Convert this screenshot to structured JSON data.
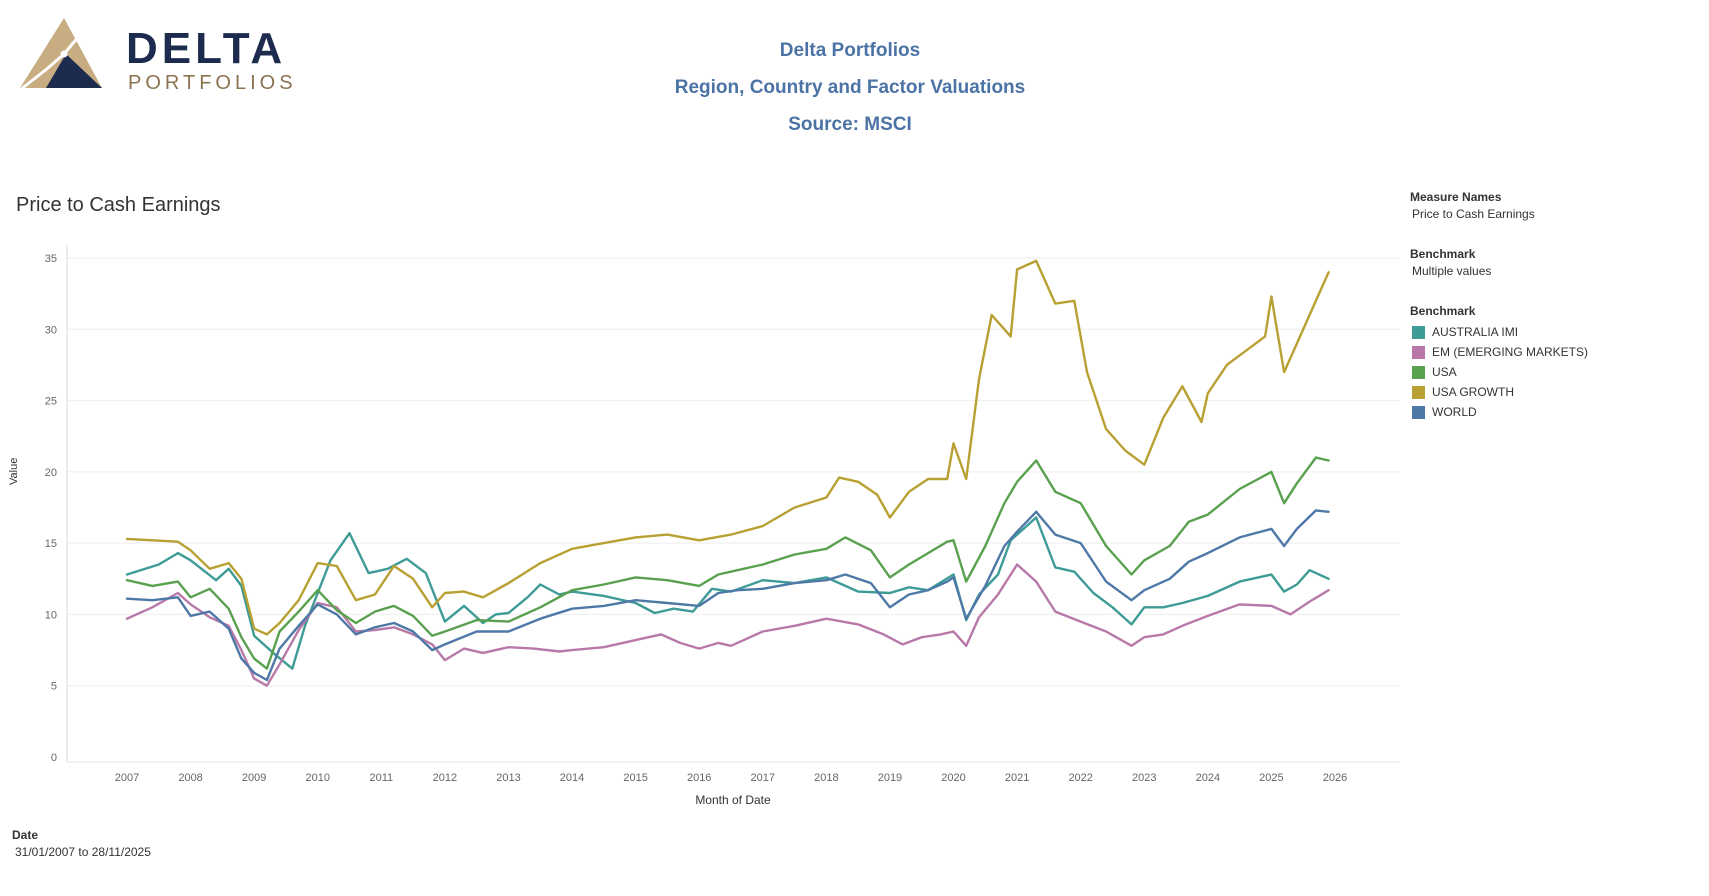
{
  "logo": {
    "name": "DELTA",
    "sub": "PORTFOLIOS",
    "colors": {
      "navy": "#1d2b4f",
      "tan": "#c9ad82"
    }
  },
  "header": {
    "line1": "Delta Portfolios",
    "line2": "Region, Country and Factor Valuations",
    "line3": "Source: MSCI"
  },
  "legend": {
    "measure_names_label": "Measure Names",
    "measure_names_value": "Price to Cash Earnings",
    "benchmark_filter_label": "Benchmark",
    "benchmark_filter_value": "Multiple values",
    "benchmark_color_label": "Benchmark"
  },
  "date_filter": {
    "label": "Date",
    "value": "31/01/2007 to 28/11/2025"
  },
  "chart_data": {
    "type": "line",
    "title": "Price to Cash Earnings",
    "xlabel": "Month of Date",
    "ylabel": "Value",
    "ylim": [
      0,
      35
    ],
    "xlim": [
      2007,
      2026
    ],
    "yticks": [
      0,
      5,
      10,
      15,
      20,
      25,
      30,
      35
    ],
    "xticks": [
      2007,
      2008,
      2009,
      2010,
      2011,
      2012,
      2013,
      2014,
      2015,
      2016,
      2017,
      2018,
      2019,
      2020,
      2021,
      2022,
      2023,
      2024,
      2025,
      2026
    ],
    "grid": "horizontal",
    "legend_position": "right",
    "series": [
      {
        "name": "AUSTRALIA IMI",
        "color": "#3e9b96",
        "x": [
          2007.0,
          2007.5,
          2007.8,
          2008.0,
          2008.4,
          2008.6,
          2008.8,
          2009.0,
          2009.3,
          2009.6,
          2009.8,
          2010.0,
          2010.2,
          2010.5,
          2010.8,
          2011.1,
          2011.4,
          2011.7,
          2012.0,
          2012.3,
          2012.6,
          2012.8,
          2013.0,
          2013.3,
          2013.5,
          2013.8,
          2014.0,
          2014.5,
          2015.0,
          2015.3,
          2015.6,
          2015.9,
          2016.2,
          2016.5,
          2017.0,
          2017.5,
          2018.0,
          2018.5,
          2019.0,
          2019.3,
          2019.6,
          2020.0,
          2020.2,
          2020.4,
          2020.7,
          2020.9,
          2021.1,
          2021.3,
          2021.6,
          2021.9,
          2022.2,
          2022.5,
          2022.8,
          2023.0,
          2023.3,
          2023.6,
          2024.0,
          2024.5,
          2025.0,
          2025.2,
          2025.4,
          2025.6,
          2025.9
        ],
        "values": [
          12.8,
          13.5,
          14.3,
          13.8,
          12.4,
          13.2,
          12.0,
          8.5,
          7.3,
          6.2,
          9.2,
          11.5,
          13.8,
          15.7,
          12.9,
          13.2,
          13.9,
          12.9,
          9.5,
          10.6,
          9.4,
          10.0,
          10.1,
          11.2,
          12.1,
          11.4,
          11.6,
          11.3,
          10.8,
          10.1,
          10.4,
          10.2,
          11.8,
          11.6,
          12.4,
          12.2,
          12.6,
          11.6,
          11.5,
          11.9,
          11.7,
          12.8,
          9.6,
          11.4,
          12.8,
          15.2,
          16.0,
          16.8,
          13.3,
          13.0,
          11.5,
          10.5,
          9.3,
          10.5,
          10.5,
          10.8,
          11.3,
          12.3,
          12.8,
          11.6,
          12.1,
          13.1,
          12.5
        ]
      },
      {
        "name": "EM (EMERGING MARKETS)",
        "color": "#b879a8",
        "x": [
          2007.0,
          2007.4,
          2007.8,
          2008.0,
          2008.3,
          2008.6,
          2008.8,
          2009.0,
          2009.2,
          2009.4,
          2009.7,
          2010.0,
          2010.3,
          2010.6,
          2010.9,
          2011.2,
          2011.5,
          2011.8,
          2012.0,
          2012.3,
          2012.6,
          2013.0,
          2013.4,
          2013.8,
          2014.0,
          2014.5,
          2015.0,
          2015.4,
          2015.7,
          2016.0,
          2016.3,
          2016.5,
          2017.0,
          2017.5,
          2018.0,
          2018.5,
          2018.9,
          2019.2,
          2019.5,
          2019.8,
          2020.0,
          2020.2,
          2020.4,
          2020.7,
          2021.0,
          2021.3,
          2021.6,
          2022.0,
          2022.4,
          2022.8,
          2023.0,
          2023.3,
          2023.6,
          2024.0,
          2024.5,
          2025.0,
          2025.3,
          2025.6,
          2025.9
        ],
        "values": [
          9.7,
          10.5,
          11.5,
          10.7,
          9.8,
          9.2,
          7.5,
          5.5,
          5.0,
          6.5,
          8.9,
          10.8,
          10.5,
          8.8,
          8.9,
          9.1,
          8.6,
          7.9,
          6.8,
          7.6,
          7.3,
          7.7,
          7.6,
          7.4,
          7.5,
          7.7,
          8.2,
          8.6,
          8.0,
          7.6,
          8.0,
          7.8,
          8.8,
          9.2,
          9.7,
          9.3,
          8.6,
          7.9,
          8.4,
          8.6,
          8.8,
          7.8,
          9.8,
          11.4,
          13.5,
          12.3,
          10.2,
          9.5,
          8.8,
          7.8,
          8.4,
          8.6,
          9.2,
          9.9,
          10.7,
          10.6,
          10.0,
          10.9,
          11.7
        ]
      },
      {
        "name": "USA",
        "color": "#59a14f",
        "x": [
          2007.0,
          2007.4,
          2007.8,
          2008.0,
          2008.3,
          2008.6,
          2008.8,
          2009.0,
          2009.2,
          2009.4,
          2009.7,
          2010.0,
          2010.3,
          2010.6,
          2010.9,
          2011.2,
          2011.5,
          2011.8,
          2012.0,
          2012.5,
          2013.0,
          2013.5,
          2014.0,
          2014.5,
          2015.0,
          2015.5,
          2016.0,
          2016.3,
          2016.6,
          2017.0,
          2017.5,
          2018.0,
          2018.3,
          2018.7,
          2019.0,
          2019.3,
          2019.6,
          2019.9,
          2020.0,
          2020.2,
          2020.5,
          2020.8,
          2021.0,
          2021.3,
          2021.6,
          2022.0,
          2022.4,
          2022.8,
          2023.0,
          2023.4,
          2023.7,
          2024.0,
          2024.5,
          2025.0,
          2025.2,
          2025.4,
          2025.7,
          2025.9
        ],
        "values": [
          12.4,
          12.0,
          12.3,
          11.2,
          11.8,
          10.4,
          8.4,
          6.9,
          6.2,
          8.8,
          10.2,
          11.7,
          10.3,
          9.4,
          10.2,
          10.6,
          9.9,
          8.5,
          8.8,
          9.6,
          9.5,
          10.5,
          11.7,
          12.1,
          12.6,
          12.4,
          12.0,
          12.8,
          13.1,
          13.5,
          14.2,
          14.6,
          15.4,
          14.5,
          12.6,
          13.5,
          14.3,
          15.1,
          15.2,
          12.3,
          14.8,
          17.8,
          19.3,
          20.8,
          18.6,
          17.8,
          14.8,
          12.8,
          13.8,
          14.8,
          16.5,
          17.0,
          18.8,
          20.0,
          17.8,
          19.2,
          21.0,
          20.8
        ]
      },
      {
        "name": "USA GROWTH",
        "color": "#b9a033",
        "x": [
          2007.0,
          2007.4,
          2007.8,
          2008.0,
          2008.3,
          2008.6,
          2008.8,
          2009.0,
          2009.2,
          2009.4,
          2009.7,
          2010.0,
          2010.3,
          2010.6,
          2010.9,
          2011.2,
          2011.5,
          2011.8,
          2012.0,
          2012.3,
          2012.6,
          2013.0,
          2013.5,
          2014.0,
          2014.5,
          2015.0,
          2015.5,
          2016.0,
          2016.5,
          2017.0,
          2017.5,
          2018.0,
          2018.2,
          2018.5,
          2018.8,
          2019.0,
          2019.3,
          2019.6,
          2019.9,
          2020.0,
          2020.2,
          2020.4,
          2020.6,
          2020.9,
          2021.0,
          2021.3,
          2021.6,
          2021.9,
          2022.1,
          2022.4,
          2022.7,
          2023.0,
          2023.3,
          2023.6,
          2023.9,
          2024.0,
          2024.3,
          2024.6,
          2024.9,
          2025.0,
          2025.2,
          2025.4,
          2025.7,
          2025.9
        ],
        "values": [
          15.3,
          15.2,
          15.1,
          14.5,
          13.2,
          13.6,
          12.5,
          9.0,
          8.6,
          9.4,
          11.0,
          13.6,
          13.4,
          11.0,
          11.4,
          13.4,
          12.5,
          10.5,
          11.5,
          11.6,
          11.2,
          12.2,
          13.6,
          14.6,
          15.0,
          15.4,
          15.6,
          15.2,
          15.6,
          16.2,
          17.5,
          18.2,
          19.6,
          19.3,
          18.4,
          16.8,
          18.6,
          19.5,
          19.5,
          22.0,
          19.5,
          26.5,
          31.0,
          29.5,
          34.2,
          34.8,
          31.8,
          32.0,
          27.0,
          23.0,
          21.5,
          20.5,
          23.8,
          26.0,
          23.5,
          25.5,
          27.5,
          28.5,
          29.5,
          32.3,
          27.0,
          29.0,
          32.0,
          34.0
        ]
      },
      {
        "name": "WORLD",
        "color": "#4e79a7",
        "x": [
          2007.0,
          2007.4,
          2007.8,
          2008.0,
          2008.3,
          2008.6,
          2008.8,
          2009.0,
          2009.2,
          2009.4,
          2009.7,
          2010.0,
          2010.3,
          2010.6,
          2010.9,
          2011.2,
          2011.5,
          2011.8,
          2012.0,
          2012.5,
          2013.0,
          2013.5,
          2014.0,
          2014.5,
          2015.0,
          2015.5,
          2016.0,
          2016.3,
          2016.6,
          2017.0,
          2017.5,
          2018.0,
          2018.3,
          2018.7,
          2019.0,
          2019.3,
          2019.6,
          2019.9,
          2020.0,
          2020.2,
          2020.5,
          2020.8,
          2021.0,
          2021.3,
          2021.6,
          2022.0,
          2022.4,
          2022.8,
          2023.0,
          2023.4,
          2023.7,
          2024.0,
          2024.5,
          2025.0,
          2025.2,
          2025.4,
          2025.7,
          2025.9
        ],
        "values": [
          11.1,
          11.0,
          11.2,
          9.9,
          10.2,
          9.0,
          6.9,
          5.9,
          5.4,
          7.6,
          9.2,
          10.7,
          10.0,
          8.6,
          9.1,
          9.4,
          8.8,
          7.5,
          7.9,
          8.8,
          8.8,
          9.7,
          10.4,
          10.6,
          11.0,
          10.8,
          10.6,
          11.5,
          11.7,
          11.8,
          12.2,
          12.4,
          12.8,
          12.2,
          10.5,
          11.4,
          11.7,
          12.3,
          12.6,
          9.7,
          12.0,
          14.8,
          15.8,
          17.2,
          15.6,
          15.0,
          12.3,
          11.0,
          11.7,
          12.5,
          13.7,
          14.3,
          15.4,
          16.0,
          14.8,
          16.0,
          17.3,
          17.2
        ]
      }
    ]
  }
}
